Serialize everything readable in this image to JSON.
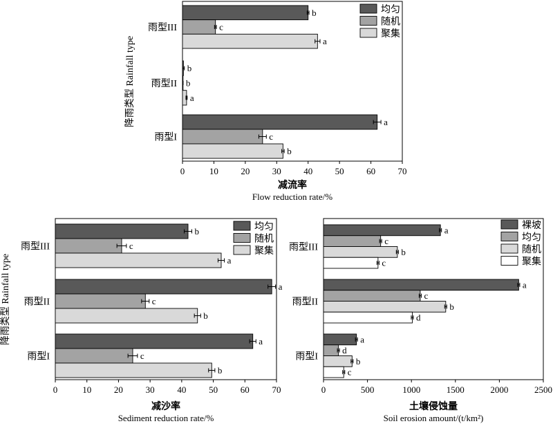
{
  "chart_data": [
    {
      "type": "bar",
      "orientation": "horizontal",
      "ylabel": "降雨类型 Rainfall type",
      "xlabel_cn": "减流率",
      "xlabel_en": "Flow reduction rate/%",
      "xlim": [
        0,
        70
      ],
      "xticks": [
        "0",
        "10",
        "20",
        "30",
        "40",
        "50",
        "60",
        "70"
      ],
      "categories": [
        "雨型III",
        "雨型II",
        "雨型I"
      ],
      "series": [
        {
          "name": "均匀",
          "color": "#595959",
          "values": [
            40,
            0.3,
            62
          ],
          "errors": [
            0.3,
            0.3,
            1.2
          ],
          "letters": [
            "b",
            "b",
            "a"
          ]
        },
        {
          "name": "随机",
          "color": "#a3a3a3",
          "values": [
            10.5,
            0.1,
            25.5
          ],
          "errors": [
            0.3,
            0.1,
            1.2
          ],
          "letters": [
            "c",
            "b",
            "c"
          ]
        },
        {
          "name": "聚集",
          "color": "#d9d9d9",
          "values": [
            43,
            1.3,
            32
          ],
          "errors": [
            0.8,
            0.2,
            0.4
          ],
          "letters": [
            "a",
            "a",
            "b"
          ]
        }
      ],
      "legend": "top-right"
    },
    {
      "type": "bar",
      "orientation": "horizontal",
      "ylabel": "降雨类型 Rainfall type",
      "xlabel_cn": "减沙率",
      "xlabel_en": "Sediment reduction rate/%",
      "xlim": [
        0,
        70
      ],
      "xticks": [
        "0",
        "10",
        "20",
        "30",
        "40",
        "50",
        "60",
        "70"
      ],
      "categories": [
        "雨型III",
        "雨型II",
        "雨型I"
      ],
      "series": [
        {
          "name": "均匀",
          "color": "#595959",
          "values": [
            42,
            68.5,
            62.5
          ],
          "errors": [
            1.2,
            1.2,
            1.0
          ],
          "letters": [
            "b",
            "a",
            "a"
          ]
        },
        {
          "name": "随机",
          "color": "#a3a3a3",
          "values": [
            21,
            28.5,
            24.5
          ],
          "errors": [
            1.5,
            1.2,
            1.5
          ],
          "letters": [
            "c",
            "c",
            "c"
          ]
        },
        {
          "name": "聚集",
          "color": "#d9d9d9",
          "values": [
            52.5,
            45,
            49.5
          ],
          "errors": [
            1.0,
            1.0,
            1.0
          ],
          "letters": [
            "a",
            "b",
            "b"
          ]
        }
      ],
      "legend": "top-right"
    },
    {
      "type": "bar",
      "orientation": "horizontal",
      "xlabel_cn": "土壤侵蚀量",
      "xlabel_en": "Soil erosion amount/(t/km²)",
      "xlim": [
        0,
        2500
      ],
      "xticks": [
        "0",
        "500",
        "1000",
        "1500",
        "2000",
        "2500"
      ],
      "categories": [
        "雨型III",
        "雨型II",
        "雨型I"
      ],
      "series": [
        {
          "name": "裸坡",
          "color": "#595959",
          "values": [
            1330,
            2220,
            375
          ],
          "errors": [
            12,
            12,
            12
          ],
          "letters": [
            "a",
            "a",
            "a"
          ]
        },
        {
          "name": "均匀",
          "color": "#a3a3a3",
          "values": [
            650,
            1100,
            170
          ],
          "errors": [
            12,
            12,
            12
          ],
          "letters": [
            "c",
            "c",
            "d"
          ]
        },
        {
          "name": "随机",
          "color": "#d9d9d9",
          "values": [
            840,
            1390,
            325
          ],
          "errors": [
            12,
            12,
            12
          ],
          "letters": [
            "b",
            "b",
            "b"
          ]
        },
        {
          "name": "聚集",
          "color": "#ffffff",
          "values": [
            620,
            1010,
            230
          ],
          "errors": [
            12,
            12,
            12
          ],
          "letters": [
            "c",
            "d",
            "c"
          ]
        }
      ],
      "legend": "top-right"
    }
  ]
}
